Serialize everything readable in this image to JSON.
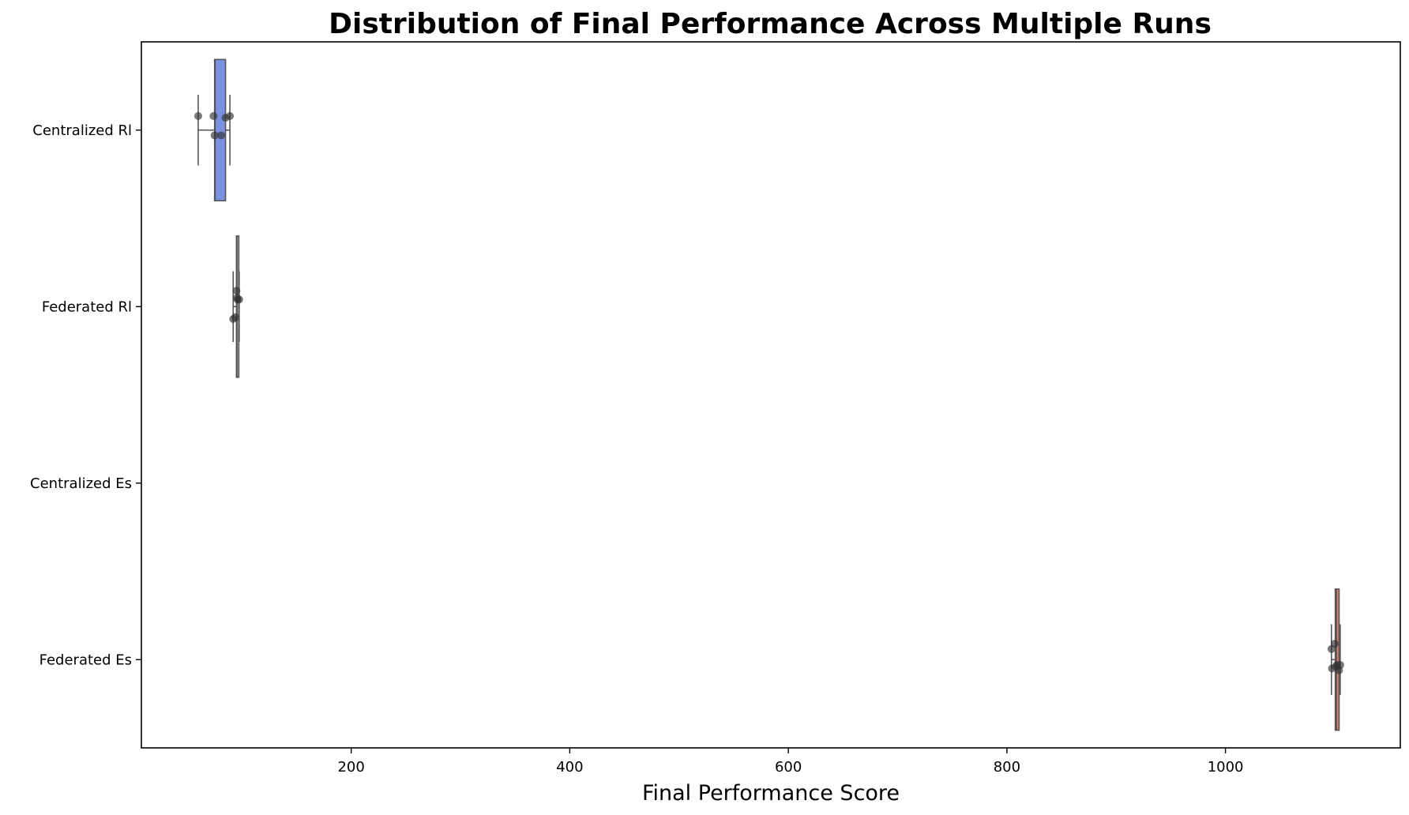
{
  "chart_data": {
    "type": "box",
    "title": "Distribution of Final Performance Across Multiple Runs",
    "xlabel": "Final Performance Score",
    "ylabel": "",
    "xlim": [
      8,
      1160
    ],
    "x_ticks": [
      200,
      400,
      600,
      800,
      1000
    ],
    "x_tick_labels": [
      "200",
      "400",
      "600",
      "800",
      "1000"
    ],
    "grid": false,
    "orientation": "horizontal",
    "categories": [
      "Centralized Rl",
      "Federated Rl",
      "Centralized Es",
      "Federated Es"
    ],
    "series": [
      {
        "category": "Centralized Rl",
        "color": "#7b92e2",
        "whisker_low": 60,
        "q1": 75,
        "median": 75.5,
        "q3": 85,
        "whisker_high": 89,
        "points": [
          {
            "x": 60,
            "jitter": -0.08
          },
          {
            "x": 74,
            "jitter": -0.08
          },
          {
            "x": 75,
            "jitter": 0.03
          },
          {
            "x": 81,
            "jitter": 0.03
          },
          {
            "x": 85,
            "jitter": -0.07
          },
          {
            "x": 89,
            "jitter": -0.08
          }
        ]
      },
      {
        "category": "Federated Rl",
        "color": "#b9c3d6",
        "whisker_low": 92,
        "q1": 95,
        "median": 95.5,
        "q3": 96,
        "whisker_high": 97.5,
        "points": [
          {
            "x": 92,
            "jitter": 0.07
          },
          {
            "x": 94,
            "jitter": 0.06
          },
          {
            "x": 95,
            "jitter": -0.09
          },
          {
            "x": 95.5,
            "jitter": -0.05
          },
          {
            "x": 96,
            "jitter": -0.04
          },
          {
            "x": 97.5,
            "jitter": -0.04
          }
        ]
      },
      {
        "category": "Centralized Es",
        "color": "#c8c8c8",
        "points": []
      },
      {
        "category": "Federated Es",
        "color": "#e07f6e",
        "whisker_low": 1097,
        "q1": 1100.5,
        "median": 1101.5,
        "q3": 1104,
        "whisker_high": 1105,
        "points": [
          {
            "x": 1097,
            "jitter": -0.06
          },
          {
            "x": 1097.5,
            "jitter": 0.05
          },
          {
            "x": 1100,
            "jitter": -0.09
          },
          {
            "x": 1101,
            "jitter": 0.04
          },
          {
            "x": 1102,
            "jitter": 0.03
          },
          {
            "x": 1104,
            "jitter": 0.06
          },
          {
            "x": 1105,
            "jitter": 0.03
          }
        ]
      }
    ],
    "point_color": "#333333"
  }
}
